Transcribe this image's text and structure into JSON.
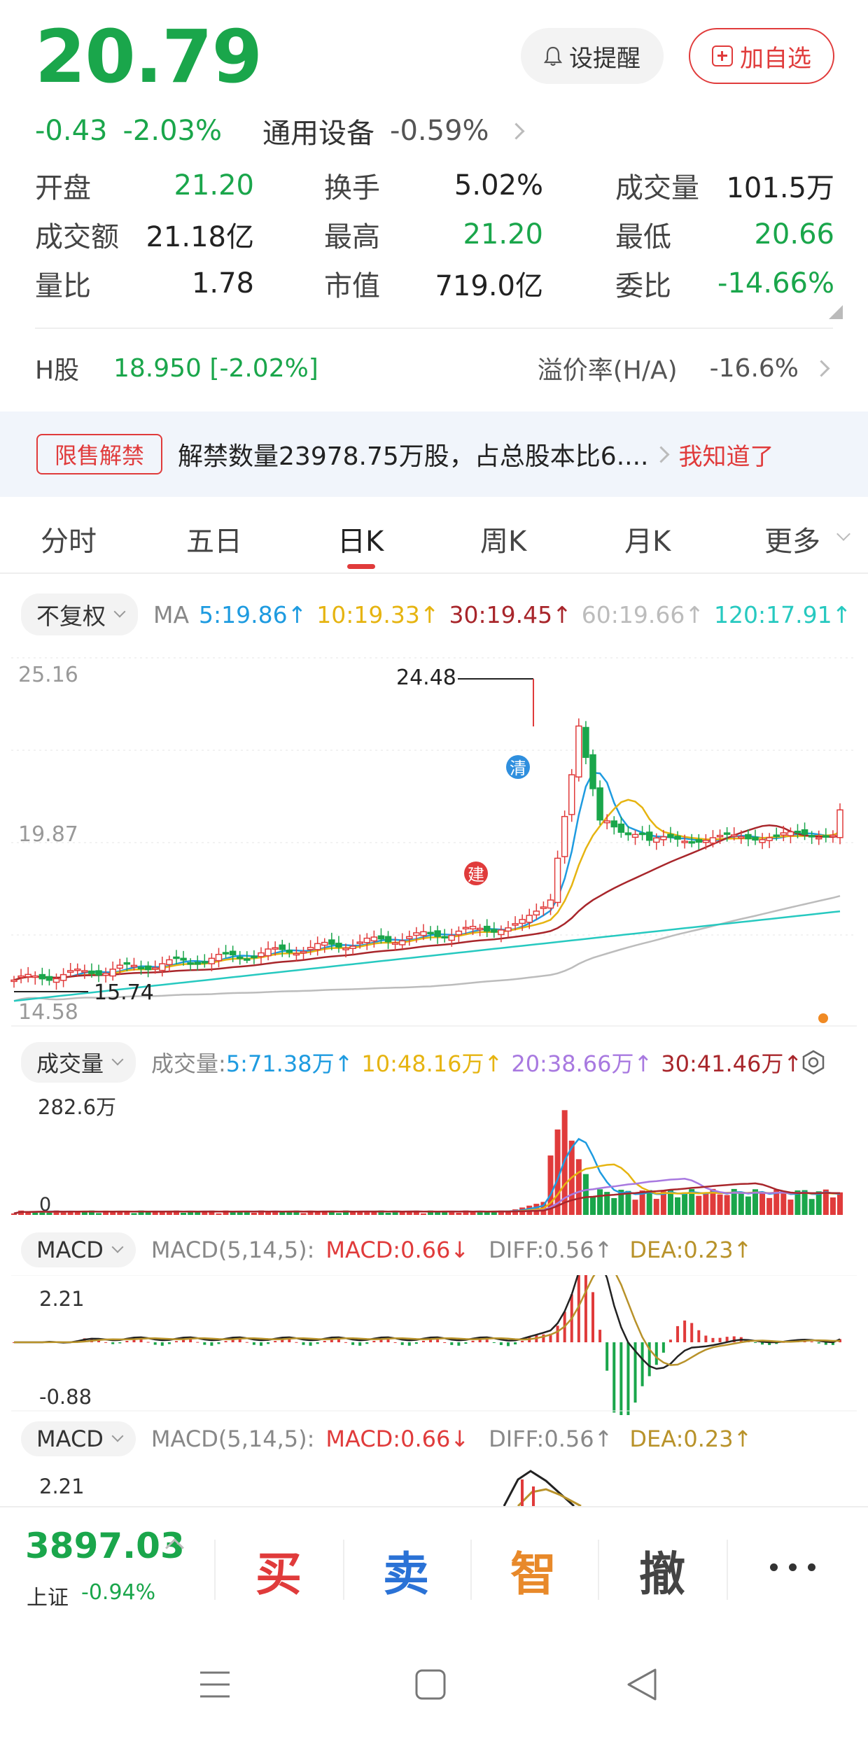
{
  "quote": {
    "price": "20.79",
    "change": "-0.43",
    "change_pct": "-2.03%",
    "industry_name": "通用设备",
    "industry_pct": "-0.59%",
    "alert_label": "设提醒",
    "add_label": "加自选"
  },
  "stats": [
    [
      {
        "label": "开盘",
        "value": "21.20",
        "color": "#1aa64b"
      },
      {
        "label": "换手",
        "value": "5.02%",
        "color": "#222222"
      },
      {
        "label": "成交量",
        "value": "101.5万",
        "color": "#222222"
      }
    ],
    [
      {
        "label": "成交额",
        "value": "21.18亿",
        "color": "#222222"
      },
      {
        "label": "最高",
        "value": "21.20",
        "color": "#1aa64b"
      },
      {
        "label": "最低",
        "value": "20.66",
        "color": "#1aa64b"
      }
    ],
    [
      {
        "label": "量比",
        "value": "1.78",
        "color": "#222222"
      },
      {
        "label": "市值",
        "value": "719.0亿",
        "color": "#222222"
      },
      {
        "label": "委比",
        "value": "-14.66%",
        "color": "#1aa64b"
      }
    ]
  ],
  "h_share": {
    "label": "H股",
    "value": "18.950 [-2.02%]",
    "premium_label": "溢价率(H/A)",
    "premium_value": "-16.6%"
  },
  "notice": {
    "tag": "限售解禁",
    "text": "解禁数量23978.75万股，占总股本比6....",
    "action": "我知道了"
  },
  "tabs": [
    "分时",
    "五日",
    "日K",
    "周K",
    "月K",
    "更多"
  ],
  "active_tab": "日K",
  "kline": {
    "adjust_label": "不复权",
    "ma_prefix": "MA",
    "ma_items": [
      {
        "text": "5:19.86↑",
        "color": "#1e9be0"
      },
      {
        "text": "10:19.33↑",
        "color": "#e6b411"
      },
      {
        "text": "30:19.45↑",
        "color": "#a8262b"
      },
      {
        "text": "60:19.66↑",
        "color": "#bcbcbc"
      },
      {
        "text": "120:17.91↑",
        "color": "#27c9c0"
      }
    ],
    "y_top": "25.16",
    "y_mid": "19.87",
    "y_bottom": "14.58",
    "high_marker": "24.48",
    "low_marker": "15.74",
    "build_marker": "建",
    "clear_marker": "清"
  },
  "volume": {
    "label": "成交量",
    "prefix": "成交量:",
    "items": [
      {
        "text": "5:71.38万↑",
        "color": "#1e9be0"
      },
      {
        "text": "10:48.16万↑",
        "color": "#e6b411"
      },
      {
        "text": "20:38.66万↑",
        "color": "#a879e0"
      },
      {
        "text": "30:41.46万↑",
        "color": "#a8262b"
      }
    ],
    "y_top": "282.6万",
    "y_bottom": "0"
  },
  "macd": {
    "label": "MACD",
    "params": "MACD(5,14,5):",
    "macd_text": "MACD:0.66↓",
    "diff_text": "DIFF:0.56↑",
    "dea_text": "DEA:0.23↑",
    "y_top": "2.21",
    "y_bottom": "-0.88"
  },
  "bottom": {
    "index_value": "3897.03",
    "index_name": "上证",
    "index_pct": "-0.94%",
    "buy": "买",
    "sell": "卖",
    "smart": "智",
    "cancel": "撤"
  }
}
